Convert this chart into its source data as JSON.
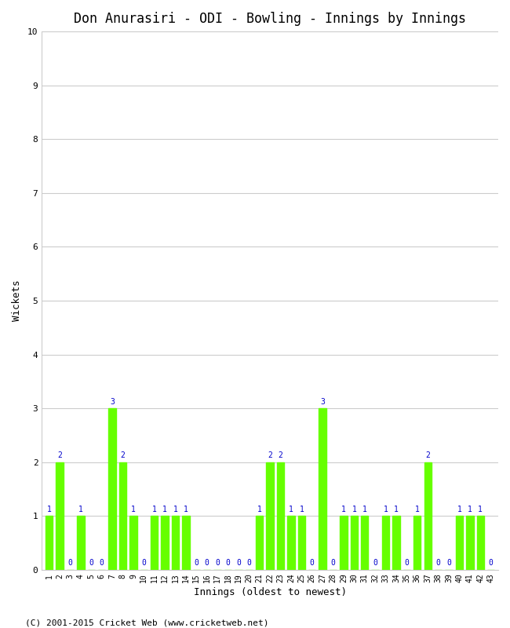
{
  "title": "Don Anurasiri - ODI - Bowling - Innings by Innings",
  "xlabel": "Innings (oldest to newest)",
  "ylabel": "Wickets",
  "ylim": [
    0,
    10
  ],
  "yticks": [
    0,
    1,
    2,
    3,
    4,
    5,
    6,
    7,
    8,
    9,
    10
  ],
  "bar_color": "#66FF00",
  "label_color": "#0000CC",
  "background_color": "#FFFFFF",
  "grid_color": "#CCCCCC",
  "innings": [
    1,
    2,
    3,
    4,
    5,
    6,
    7,
    8,
    9,
    10,
    11,
    12,
    13,
    14,
    15,
    16,
    17,
    18,
    19,
    20,
    21,
    22,
    23,
    24,
    25,
    26,
    27,
    28,
    29,
    30,
    31,
    32,
    33,
    34,
    35,
    36,
    37,
    38,
    39,
    40,
    41,
    42,
    43
  ],
  "wickets": [
    1,
    2,
    0,
    1,
    0,
    0,
    3,
    2,
    1,
    0,
    1,
    1,
    1,
    1,
    0,
    0,
    0,
    0,
    0,
    0,
    1,
    2,
    2,
    1,
    1,
    0,
    3,
    0,
    1,
    1,
    1,
    0,
    1,
    1,
    0,
    1,
    2,
    0,
    0,
    1,
    1,
    1,
    0
  ],
  "footer": "(C) 2001-2015 Cricket Web (www.cricketweb.net)",
  "title_fontsize": 12,
  "axis_label_fontsize": 9,
  "tick_fontsize": 8,
  "bar_label_fontsize": 7,
  "footer_fontsize": 8
}
